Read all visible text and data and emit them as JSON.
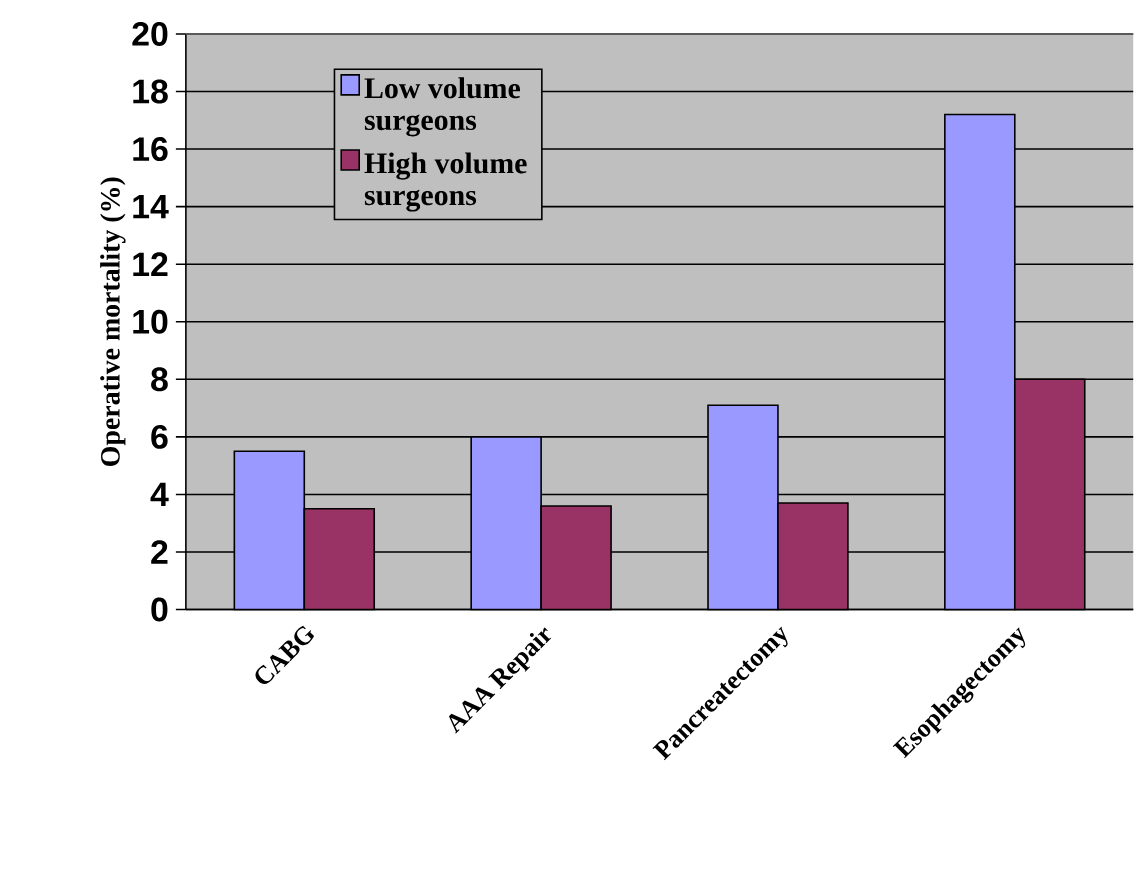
{
  "chart_data": {
    "type": "bar",
    "ylabel": "Operative mortality (%)",
    "categories": [
      "CABG",
      "AAA Repair",
      "Pancreatectomy",
      "Esophagectomy"
    ],
    "series": [
      {
        "name": "Low volume surgeons",
        "color": "#9999ff",
        "values": [
          5.5,
          6.0,
          7.1,
          17.2
        ]
      },
      {
        "name": "High volume surgeons",
        "color": "#993366",
        "values": [
          3.5,
          3.6,
          3.7,
          8.0
        ]
      }
    ],
    "ylim": [
      0,
      20
    ],
    "yticks": [
      0,
      2,
      4,
      6,
      8,
      10,
      12,
      14,
      16,
      18,
      20
    ],
    "grid": "y",
    "legend": "top left"
  }
}
